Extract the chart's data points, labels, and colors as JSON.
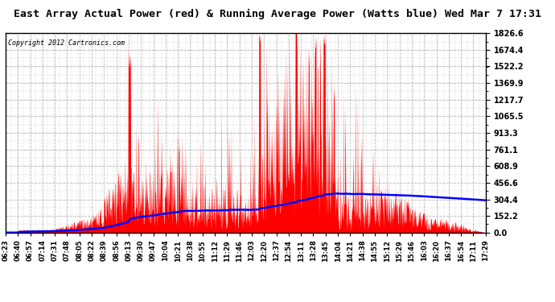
{
  "title": "East Array Actual Power (red) & Running Average Power (Watts blue) Wed Mar 7 17:31",
  "copyright": "Copyright 2012 Cartronics.com",
  "title_fontsize": 9.5,
  "background_color": "#ffffff",
  "plot_bg_color": "#ffffff",
  "grid_color": "#bbbbbb",
  "actual_color": "red",
  "average_color": "blue",
  "ylim": [
    0.0,
    1826.6
  ],
  "yticks": [
    0.0,
    152.2,
    304.4,
    456.6,
    608.9,
    761.1,
    913.3,
    1065.5,
    1217.7,
    1369.9,
    1522.2,
    1674.4,
    1826.6
  ],
  "ytick_labels": [
    "0.0",
    "152.2",
    "304.4",
    "456.6",
    "608.9",
    "761.1",
    "913.3",
    "1065.5",
    "1217.7",
    "1369.9",
    "1522.2",
    "1674.4",
    "1826.6"
  ],
  "xtick_labels": [
    "06:23",
    "06:40",
    "06:57",
    "07:14",
    "07:31",
    "07:48",
    "08:05",
    "08:22",
    "08:39",
    "08:56",
    "09:13",
    "09:30",
    "09:47",
    "10:04",
    "10:21",
    "10:38",
    "10:55",
    "11:12",
    "11:29",
    "11:46",
    "12:03",
    "12:20",
    "12:37",
    "12:54",
    "13:11",
    "13:28",
    "13:45",
    "14:04",
    "14:21",
    "14:38",
    "14:55",
    "15:12",
    "15:29",
    "15:46",
    "16:03",
    "16:20",
    "16:37",
    "16:54",
    "17:11",
    "17:29"
  ],
  "num_points": 1320
}
